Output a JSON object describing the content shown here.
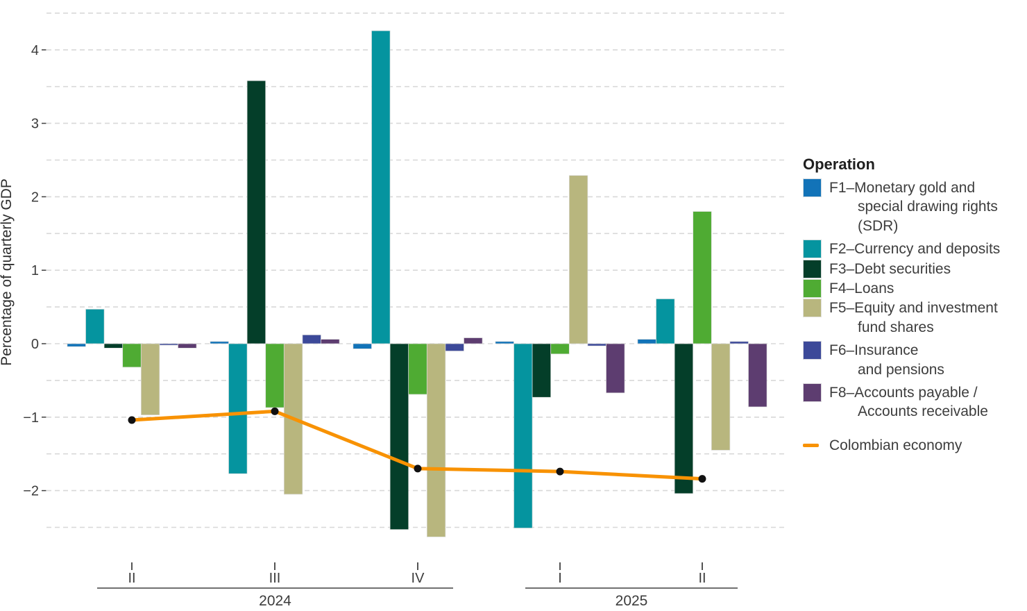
{
  "chart_data": {
    "type": "bar+line",
    "title": "",
    "ylabel": "Percentage of quarterly GDP",
    "ylim": [
      -2.8,
      4.6
    ],
    "y_ticks": [
      4,
      3,
      2,
      1,
      0,
      -1,
      -2
    ],
    "grid_min": -2.5,
    "grid_max": 4.5,
    "grid_step": 0.5,
    "grid_on": true,
    "legend_position": "right",
    "groups": [
      {
        "year": "2024",
        "quarter": "II"
      },
      {
        "year": "2024",
        "quarter": "III"
      },
      {
        "year": "2024",
        "quarter": "IV"
      },
      {
        "year": "2025",
        "quarter": "I"
      },
      {
        "year": "2025",
        "quarter": "II"
      }
    ],
    "series": [
      {
        "id": "F1",
        "name": "F1–Monetary gold and special drawing rights (SDR)",
        "color": "#1273b8",
        "values": [
          -0.04,
          0.03,
          -0.07,
          0.03,
          0.06
        ]
      },
      {
        "id": "F2",
        "name": "F2–Currency and deposits",
        "color": "#05949f",
        "values": [
          0.47,
          -1.77,
          4.26,
          -2.51,
          0.61
        ]
      },
      {
        "id": "F3",
        "name": "F3–Debt securities",
        "color": "#043e29",
        "values": [
          -0.06,
          3.58,
          -2.53,
          -0.73,
          -2.04
        ]
      },
      {
        "id": "F4",
        "name": "F4–Loans",
        "color": "#4fab33",
        "values": [
          -0.32,
          -0.87,
          -0.69,
          -0.14,
          1.8
        ]
      },
      {
        "id": "F5",
        "name": "F5–Equity and investment fund shares",
        "color": "#b8b67e",
        "values": [
          -0.97,
          -2.05,
          -2.63,
          2.29,
          -1.45
        ]
      },
      {
        "id": "F6",
        "name": "F6–Insurance and pensions",
        "color": "#3c4999",
        "values": [
          -0.02,
          0.12,
          -0.1,
          -0.03,
          0.03
        ]
      },
      {
        "id": "F8",
        "name": "F8–Accounts payable / Accounts receivable",
        "color": "#5d3d70",
        "values": [
          -0.06,
          0.06,
          0.08,
          -0.67,
          -0.86
        ]
      }
    ],
    "line_series": {
      "name": "Colombian economy",
      "color": "#f89203",
      "point_color": "#111111",
      "values": [
        -1.04,
        -0.92,
        -1.7,
        -1.74,
        -1.84
      ]
    }
  },
  "legend": {
    "title": "Operation",
    "items": [
      {
        "id": "F1",
        "color": "#1273b8",
        "label": "F1–Monetary gold and\nspecial drawing rights\n(SDR)"
      },
      {
        "id": "F2",
        "color": "#05949f",
        "label": "F2–Currency and deposits"
      },
      {
        "id": "F3",
        "color": "#043e29",
        "label": "F3–Debt securities"
      },
      {
        "id": "F4",
        "color": "#4fab33",
        "label": "F4–Loans"
      },
      {
        "id": "F5",
        "color": "#b8b67e",
        "label": "F5–Equity and investment\nfund shares"
      },
      {
        "id": "F6",
        "color": "#3c4999",
        "label": "F6–Insurance\nand pensions"
      },
      {
        "id": "F8",
        "color": "#5d3d70",
        "label": "F8–Accounts payable /\nAccounts receivable"
      }
    ],
    "line_item": {
      "label": "Colombian economy",
      "color": "#f89203"
    }
  },
  "style": {
    "grid_color": "#d8d8d8",
    "axis_text_color": "#3c3c3c",
    "axis_line_color": "#404040",
    "bar_outline": "#dcdcdc"
  }
}
